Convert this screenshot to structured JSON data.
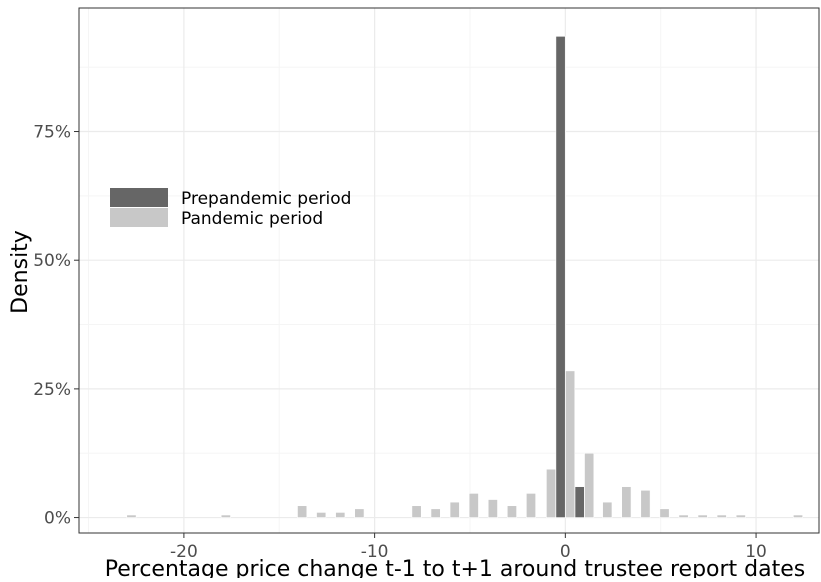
{
  "chart_data": {
    "type": "bar",
    "xlabel": "Percentage price change t-1 to t+1 around trustee report dates",
    "ylabel": "Density",
    "xlim": [
      -25.5,
      13.3
    ],
    "ylim": [
      -0.03,
      0.99
    ],
    "x_ticks": [
      -20,
      -10,
      0,
      10
    ],
    "x_tick_labels": [
      "-20",
      "-10",
      "0",
      "10"
    ],
    "y_ticks": [
      0,
      0.25,
      0.5,
      0.75
    ],
    "y_tick_labels": [
      "0%",
      "25%",
      "50%",
      "75%"
    ],
    "grid": true,
    "legend_position": "left",
    "colors": {
      "Prepandemic period": "#666666",
      "Pandemic period": "#c8c8c8",
      "grid_major": "#ebebeb",
      "grid_minor": "#f5f5f5",
      "panel_border": "#333333"
    },
    "bin_width": 0.49,
    "series": [
      {
        "name": "Prepandemic period",
        "x": [
          -0.25,
          0.75
        ],
        "values": [
          0.935,
          0.06
        ]
      },
      {
        "name": "Pandemic period",
        "x": [
          -22.75,
          -17.8,
          -13.8,
          -12.8,
          -11.8,
          -10.8,
          -7.8,
          -6.8,
          -5.8,
          -4.8,
          -3.8,
          -2.8,
          -1.8,
          -0.75,
          0.25,
          1.25,
          2.2,
          3.2,
          4.2,
          5.2,
          6.2,
          7.2,
          8.2,
          9.2,
          12.2
        ],
        "values": [
          0.005,
          0.005,
          0.023,
          0.01,
          0.01,
          0.017,
          0.023,
          0.017,
          0.03,
          0.047,
          0.035,
          0.023,
          0.047,
          0.094,
          0.285,
          0.125,
          0.03,
          0.06,
          0.053,
          0.017,
          0.005,
          0.005,
          0.005,
          0.005,
          0.005
        ]
      }
    ]
  }
}
